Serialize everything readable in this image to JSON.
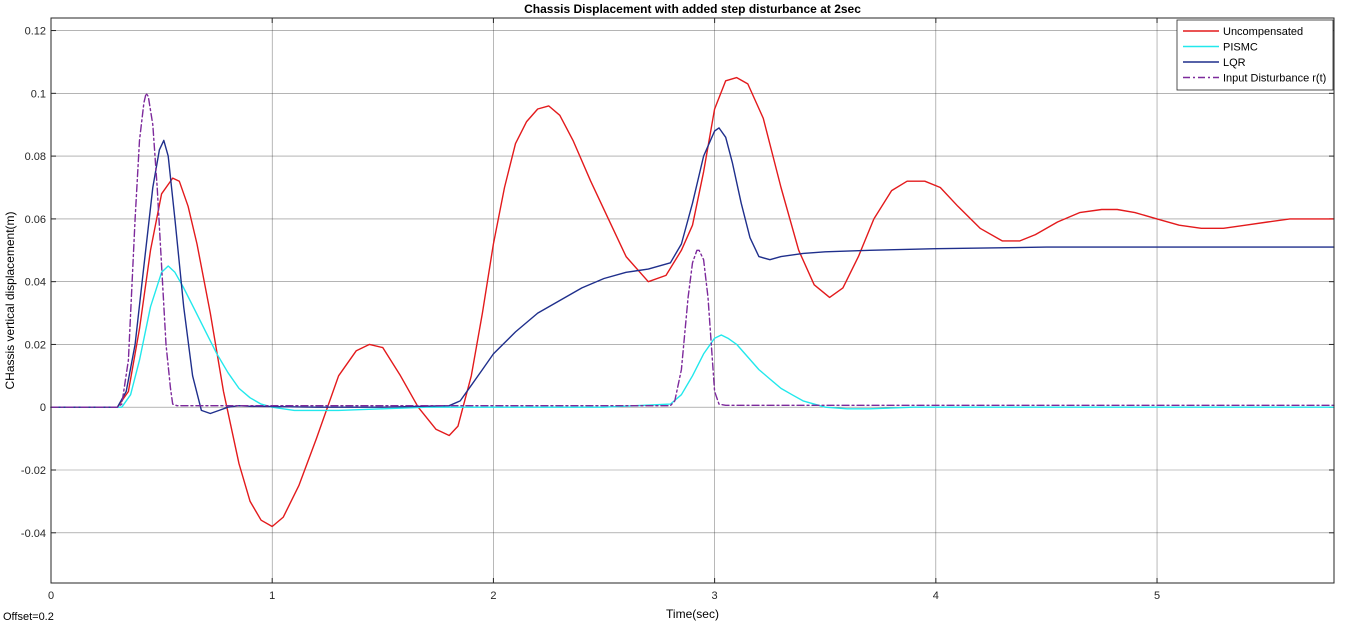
{
  "chart_data": {
    "type": "line",
    "title": "Chassis Displacement with added step disturbance at 2sec",
    "xlabel": "Time(sec)",
    "ylabel": "CHassis vertical displacement(m)",
    "xlim": [
      0,
      5.8
    ],
    "ylim": [
      -0.056,
      0.124
    ],
    "xticks": [
      0,
      1,
      2,
      3,
      4,
      5
    ],
    "yticks": [
      -0.04,
      -0.02,
      0,
      0.02,
      0.04,
      0.06,
      0.08,
      0.1,
      0.12
    ],
    "grid": true,
    "legend": "top-right",
    "footer": "Offset=0.2",
    "series": [
      {
        "name": "Uncompensated",
        "color": "#e31a1c",
        "dash": "solid",
        "x": [
          0,
          0.3,
          0.35,
          0.4,
          0.45,
          0.5,
          0.55,
          0.58,
          0.62,
          0.66,
          0.72,
          0.78,
          0.85,
          0.9,
          0.95,
          1.0,
          1.05,
          1.12,
          1.2,
          1.3,
          1.38,
          1.44,
          1.5,
          1.58,
          1.66,
          1.74,
          1.8,
          1.84,
          1.9,
          1.95,
          2.0,
          2.05,
          2.1,
          2.15,
          2.2,
          2.25,
          2.3,
          2.36,
          2.44,
          2.52,
          2.6,
          2.7,
          2.78,
          2.85,
          2.9,
          2.95,
          3.0,
          3.05,
          3.1,
          3.15,
          3.22,
          3.3,
          3.38,
          3.45,
          3.52,
          3.58,
          3.65,
          3.72,
          3.8,
          3.87,
          3.95,
          4.02,
          4.1,
          4.2,
          4.3,
          4.38,
          4.45,
          4.55,
          4.65,
          4.75,
          4.82,
          4.9,
          5.0,
          5.1,
          5.2,
          5.3,
          5.4,
          5.5,
          5.6,
          5.7,
          5.8
        ],
        "y": [
          0,
          0,
          0.005,
          0.025,
          0.05,
          0.068,
          0.073,
          0.072,
          0.064,
          0.052,
          0.03,
          0.005,
          -0.018,
          -0.03,
          -0.036,
          -0.038,
          -0.035,
          -0.025,
          -0.01,
          0.01,
          0.018,
          0.02,
          0.019,
          0.01,
          0.0,
          -0.007,
          -0.009,
          -0.006,
          0.01,
          0.03,
          0.052,
          0.07,
          0.084,
          0.091,
          0.095,
          0.096,
          0.093,
          0.085,
          0.072,
          0.06,
          0.048,
          0.04,
          0.042,
          0.05,
          0.058,
          0.075,
          0.095,
          0.104,
          0.105,
          0.103,
          0.092,
          0.07,
          0.05,
          0.039,
          0.035,
          0.038,
          0.048,
          0.06,
          0.069,
          0.072,
          0.072,
          0.07,
          0.064,
          0.057,
          0.053,
          0.053,
          0.055,
          0.059,
          0.062,
          0.063,
          0.063,
          0.062,
          0.06,
          0.058,
          0.057,
          0.057,
          0.058,
          0.059,
          0.06,
          0.06,
          0.06
        ]
      },
      {
        "name": "PISMC",
        "color": "#22e8ec",
        "dash": "solid",
        "x": [
          0,
          0.32,
          0.36,
          0.4,
          0.45,
          0.5,
          0.53,
          0.56,
          0.6,
          0.65,
          0.7,
          0.75,
          0.8,
          0.85,
          0.9,
          0.95,
          1.0,
          1.1,
          1.2,
          1.3,
          1.5,
          1.7,
          2.0,
          2.5,
          2.8,
          2.85,
          2.9,
          2.95,
          3.0,
          3.03,
          3.06,
          3.1,
          3.15,
          3.2,
          3.25,
          3.3,
          3.35,
          3.4,
          3.45,
          3.5,
          3.6,
          3.7,
          3.9,
          4.2,
          5.0,
          5.8
        ],
        "y": [
          0,
          0,
          0.004,
          0.015,
          0.032,
          0.043,
          0.045,
          0.043,
          0.038,
          0.031,
          0.024,
          0.017,
          0.011,
          0.006,
          0.003,
          0.001,
          0.0,
          -0.001,
          -0.001,
          -0.001,
          -0.0005,
          0,
          0,
          0,
          0.001,
          0.004,
          0.01,
          0.017,
          0.022,
          0.023,
          0.022,
          0.02,
          0.016,
          0.012,
          0.009,
          0.006,
          0.004,
          0.002,
          0.001,
          0.0,
          -0.0005,
          -0.0005,
          0,
          0,
          0,
          0
        ]
      },
      {
        "name": "LQR",
        "color": "#1f2f8c",
        "dash": "solid",
        "x": [
          0,
          0.3,
          0.34,
          0.38,
          0.42,
          0.46,
          0.49,
          0.51,
          0.53,
          0.56,
          0.6,
          0.64,
          0.68,
          0.72,
          0.76,
          0.8,
          0.85,
          0.9,
          1.0,
          1.2,
          1.5,
          1.8,
          1.85,
          1.9,
          1.95,
          2.0,
          2.1,
          2.2,
          2.3,
          2.4,
          2.5,
          2.6,
          2.7,
          2.8,
          2.85,
          2.9,
          2.95,
          3.0,
          3.02,
          3.05,
          3.08,
          3.12,
          3.16,
          3.2,
          3.25,
          3.3,
          3.4,
          3.5,
          3.7,
          4.0,
          4.5,
          5.0,
          5.5,
          5.8
        ],
        "y": [
          0,
          0,
          0.005,
          0.02,
          0.045,
          0.07,
          0.082,
          0.085,
          0.08,
          0.06,
          0.032,
          0.01,
          -0.001,
          -0.002,
          -0.001,
          0.0,
          0.0005,
          0.0003,
          0.0002,
          0,
          0,
          0.0005,
          0.002,
          0.007,
          0.012,
          0.017,
          0.024,
          0.03,
          0.034,
          0.038,
          0.041,
          0.043,
          0.044,
          0.046,
          0.052,
          0.065,
          0.08,
          0.088,
          0.089,
          0.086,
          0.078,
          0.065,
          0.054,
          0.048,
          0.047,
          0.048,
          0.049,
          0.0495,
          0.05,
          0.0505,
          0.051,
          0.051,
          0.051,
          0.051
        ]
      },
      {
        "name": "Input Disturbance r(t)",
        "color": "#7d2a9c",
        "dash": "dashdot",
        "x": [
          0,
          0.3,
          0.32,
          0.35,
          0.38,
          0.4,
          0.42,
          0.43,
          0.44,
          0.46,
          0.48,
          0.5,
          0.52,
          0.54,
          0.55,
          0.57,
          0.6,
          1.0,
          2.0,
          2.5,
          2.8,
          2.82,
          2.85,
          2.88,
          2.9,
          2.92,
          2.93,
          2.95,
          2.97,
          2.99,
          3.0,
          3.02,
          3.05,
          3.5,
          4.0,
          5.0,
          5.8
        ],
        "y": [
          0,
          0,
          0.001,
          0.015,
          0.06,
          0.085,
          0.097,
          0.1,
          0.099,
          0.09,
          0.07,
          0.045,
          0.02,
          0.006,
          0.001,
          0.0005,
          0.0005,
          0.0005,
          0.0005,
          0.0005,
          0.0005,
          0.002,
          0.012,
          0.035,
          0.046,
          0.05,
          0.05,
          0.047,
          0.035,
          0.015,
          0.005,
          0.001,
          0.0006,
          0.0006,
          0.0006,
          0.0006,
          0.0006
        ]
      }
    ]
  }
}
